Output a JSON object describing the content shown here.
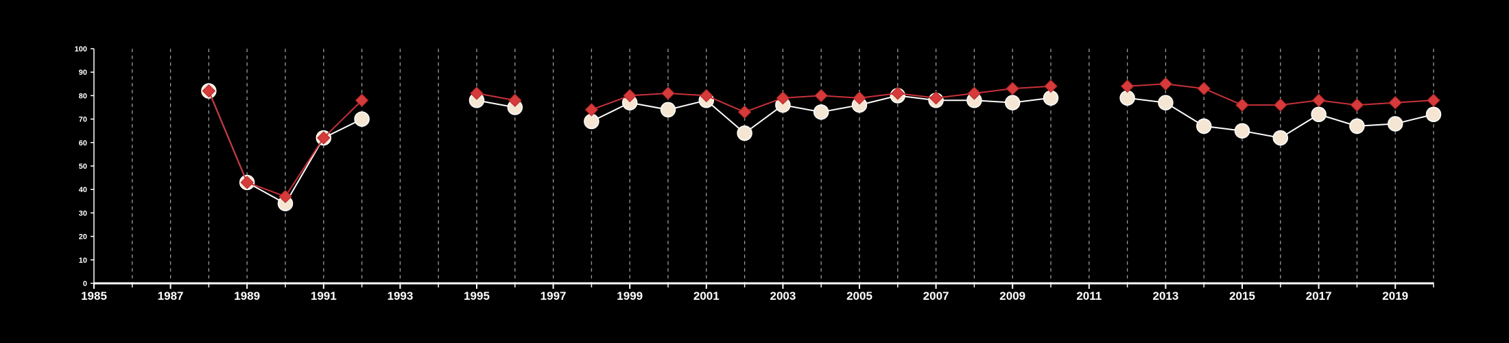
{
  "chart_data": {
    "type": "line",
    "x_ticks": [
      "1985",
      "1987",
      "1989",
      "1991",
      "1993",
      "1995",
      "1997",
      "1999",
      "2001",
      "2003",
      "2005",
      "2007",
      "2009",
      "2011",
      "2013",
      "2015",
      "2017",
      "2019"
    ],
    "y_ticks": [
      "0",
      "10",
      "20",
      "30",
      "40",
      "50",
      "60",
      "70",
      "80",
      "90",
      "100"
    ],
    "xlim": [
      1985,
      2020
    ],
    "ylim": [
      0,
      100
    ],
    "grid": "vertical dashed, every year",
    "legend": "none",
    "series": [
      {
        "marker": "circle",
        "color": "#f5e6d3",
        "line_color": "#ffffff",
        "points": [
          [
            1988,
            82
          ],
          [
            1989,
            43
          ],
          [
            1990,
            34
          ],
          [
            1991,
            62
          ],
          [
            1992,
            70
          ],
          [
            1993,
            null
          ],
          [
            1994,
            null
          ],
          [
            1995,
            78
          ],
          [
            1996,
            75
          ],
          [
            1997,
            null
          ],
          [
            1998,
            69
          ],
          [
            1999,
            77
          ],
          [
            2000,
            74
          ],
          [
            2001,
            78
          ],
          [
            2002,
            64
          ],
          [
            2003,
            76
          ],
          [
            2004,
            73
          ],
          [
            2005,
            76
          ],
          [
            2006,
            80
          ],
          [
            2007,
            78
          ],
          [
            2008,
            78
          ],
          [
            2009,
            77
          ],
          [
            2010,
            79
          ],
          [
            2011,
            null
          ],
          [
            2012,
            79
          ],
          [
            2013,
            77
          ],
          [
            2014,
            67
          ],
          [
            2015,
            65
          ],
          [
            2016,
            62
          ],
          [
            2017,
            72
          ],
          [
            2018,
            67
          ],
          [
            2019,
            68
          ],
          [
            2020,
            72
          ]
        ]
      },
      {
        "marker": "diamond",
        "color": "#d63a3a",
        "line_color": "#c8323a",
        "points": [
          [
            1988,
            82
          ],
          [
            1989,
            43
          ],
          [
            1990,
            37
          ],
          [
            1991,
            62
          ],
          [
            1992,
            78
          ],
          [
            1993,
            null
          ],
          [
            1994,
            null
          ],
          [
            1995,
            81
          ],
          [
            1996,
            78
          ],
          [
            1997,
            null
          ],
          [
            1998,
            74
          ],
          [
            1999,
            80
          ],
          [
            2000,
            81
          ],
          [
            2001,
            80
          ],
          [
            2002,
            73
          ],
          [
            2003,
            79
          ],
          [
            2004,
            80
          ],
          [
            2005,
            79
          ],
          [
            2006,
            81
          ],
          [
            2007,
            79
          ],
          [
            2008,
            81
          ],
          [
            2009,
            83
          ],
          [
            2010,
            84
          ],
          [
            2011,
            null
          ],
          [
            2012,
            84
          ],
          [
            2013,
            85
          ],
          [
            2014,
            83
          ],
          [
            2015,
            76
          ],
          [
            2016,
            76
          ],
          [
            2017,
            78
          ],
          [
            2018,
            76
          ],
          [
            2019,
            77
          ],
          [
            2020,
            78
          ]
        ]
      }
    ]
  },
  "colors": {
    "background": "#000000",
    "axis": "#ffffff",
    "grid": "#999999"
  }
}
